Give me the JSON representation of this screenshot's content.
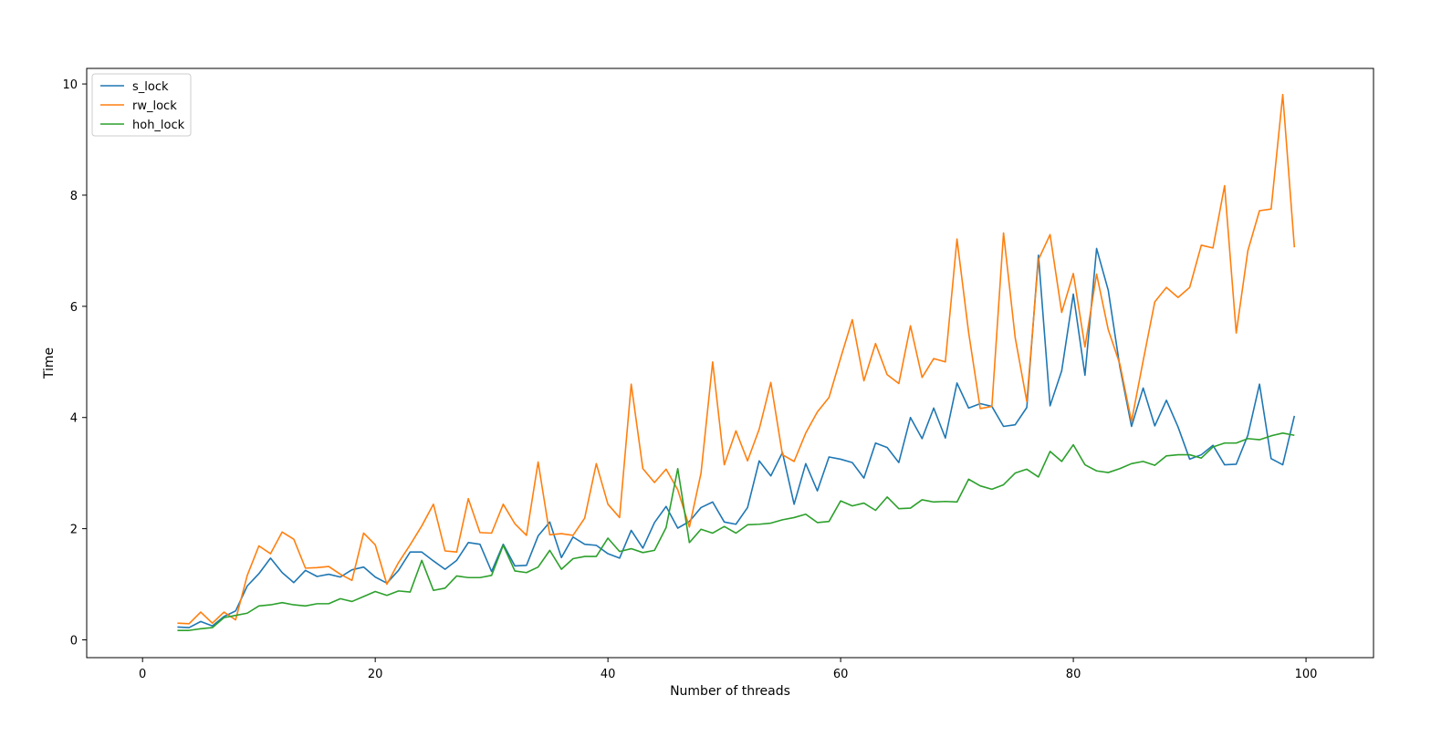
{
  "chart_data": {
    "type": "line",
    "title": "",
    "xlabel": "Number of threads",
    "ylabel": "Time",
    "xlim": [
      -4.8,
      105.8
    ],
    "ylim": [
      -0.32,
      10.28
    ],
    "xticks": [
      0,
      20,
      40,
      60,
      80,
      100
    ],
    "yticks": [
      0,
      2,
      4,
      6,
      8,
      10
    ],
    "x_tick_labels": [
      "0",
      "20",
      "40",
      "60",
      "80",
      "100"
    ],
    "y_tick_labels": [
      "0",
      "2",
      "4",
      "6",
      "8",
      "10"
    ],
    "grid": false,
    "legend": "top-left",
    "x": [
      3,
      4,
      5,
      6,
      7,
      8,
      9,
      10,
      11,
      12,
      13,
      14,
      15,
      16,
      17,
      18,
      19,
      20,
      21,
      22,
      23,
      24,
      25,
      26,
      27,
      28,
      29,
      30,
      31,
      32,
      33,
      34,
      35,
      36,
      37,
      38,
      39,
      40,
      41,
      42,
      43,
      44,
      45,
      46,
      47,
      48,
      49,
      50,
      51,
      52,
      53,
      54,
      55,
      56,
      57,
      58,
      59,
      60,
      61,
      62,
      63,
      64,
      65,
      66,
      67,
      68,
      69,
      70,
      71,
      72,
      73,
      74,
      75,
      76,
      77,
      78,
      79,
      80,
      81,
      82,
      83,
      84,
      85,
      86,
      87,
      88,
      89,
      90,
      91,
      92,
      93,
      94,
      95,
      96,
      97,
      98,
      99
    ],
    "series": [
      {
        "name": "s_lock",
        "color": "#1f77b4",
        "values": [
          0.23,
          0.22,
          0.33,
          0.25,
          0.42,
          0.52,
          0.97,
          1.19,
          1.47,
          1.21,
          1.03,
          1.25,
          1.14,
          1.18,
          1.13,
          1.26,
          1.31,
          1.13,
          1.02,
          1.25,
          1.58,
          1.58,
          1.42,
          1.27,
          1.43,
          1.75,
          1.72,
          1.23,
          1.72,
          1.33,
          1.34,
          1.87,
          2.12,
          1.48,
          1.85,
          1.72,
          1.7,
          1.55,
          1.47,
          1.97,
          1.65,
          2.11,
          2.4,
          2.01,
          2.13,
          2.38,
          2.48,
          2.12,
          2.08,
          2.38,
          3.22,
          2.95,
          3.37,
          2.44,
          3.17,
          2.68,
          3.29,
          3.25,
          3.19,
          2.91,
          3.54,
          3.46,
          3.19,
          4.0,
          3.62,
          4.17,
          3.63,
          4.62,
          4.17,
          4.25,
          4.2,
          3.84,
          3.87,
          4.18,
          6.92,
          4.21,
          4.84,
          6.22,
          4.76,
          7.04,
          6.29,
          4.91,
          3.84,
          4.53,
          3.85,
          4.31,
          3.83,
          3.25,
          3.33,
          3.5,
          3.15,
          3.16,
          3.68,
          4.6,
          3.26,
          3.15,
          4.03
        ]
      },
      {
        "name": "rw_lock",
        "color": "#ff7f0e",
        "values": [
          0.3,
          0.29,
          0.5,
          0.3,
          0.5,
          0.36,
          1.16,
          1.69,
          1.55,
          1.94,
          1.81,
          1.29,
          1.3,
          1.32,
          1.18,
          1.07,
          1.92,
          1.71,
          1.0,
          1.39,
          1.71,
          2.05,
          2.44,
          1.6,
          1.58,
          2.54,
          1.93,
          1.92,
          2.44,
          2.09,
          1.88,
          3.2,
          1.89,
          1.91,
          1.88,
          2.19,
          3.17,
          2.44,
          2.2,
          4.6,
          3.08,
          2.83,
          3.07,
          2.7,
          2.03,
          3.0,
          5.0,
          3.15,
          3.76,
          3.22,
          3.79,
          4.63,
          3.33,
          3.21,
          3.72,
          4.1,
          4.36,
          5.07,
          5.76,
          4.66,
          5.33,
          4.77,
          4.61,
          5.65,
          4.72,
          5.06,
          5.0,
          7.21,
          5.53,
          4.16,
          4.2,
          7.32,
          5.44,
          4.29,
          6.84,
          7.29,
          5.89,
          6.59,
          5.27,
          6.58,
          5.58,
          4.96,
          3.93,
          5.02,
          6.08,
          6.34,
          6.16,
          6.34,
          7.1,
          7.05,
          8.17,
          5.52,
          7.0,
          7.72,
          7.75,
          9.81,
          7.06
        ]
      },
      {
        "name": "hoh_lock",
        "color": "#2ca02c",
        "values": [
          0.17,
          0.17,
          0.2,
          0.22,
          0.4,
          0.44,
          0.48,
          0.61,
          0.63,
          0.67,
          0.63,
          0.61,
          0.65,
          0.65,
          0.74,
          0.69,
          0.78,
          0.87,
          0.8,
          0.88,
          0.86,
          1.43,
          0.89,
          0.93,
          1.15,
          1.12,
          1.12,
          1.16,
          1.7,
          1.24,
          1.21,
          1.31,
          1.61,
          1.27,
          1.46,
          1.5,
          1.5,
          1.83,
          1.59,
          1.64,
          1.57,
          1.61,
          2.02,
          3.08,
          1.75,
          1.99,
          1.92,
          2.04,
          1.92,
          2.07,
          2.08,
          2.1,
          2.16,
          2.2,
          2.26,
          2.11,
          2.13,
          2.5,
          2.41,
          2.46,
          2.33,
          2.57,
          2.36,
          2.37,
          2.52,
          2.48,
          2.49,
          2.48,
          2.89,
          2.77,
          2.71,
          2.79,
          3.0,
          3.07,
          2.93,
          3.39,
          3.21,
          3.51,
          3.15,
          3.04,
          3.01,
          3.08,
          3.17,
          3.21,
          3.14,
          3.31,
          3.33,
          3.33,
          3.27,
          3.47,
          3.54,
          3.54,
          3.62,
          3.6,
          3.67,
          3.72,
          3.68
        ]
      }
    ]
  }
}
